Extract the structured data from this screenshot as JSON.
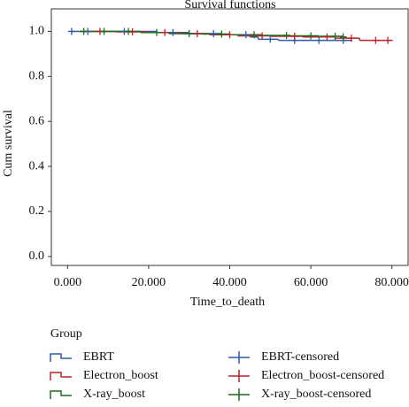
{
  "chart_data": {
    "type": "survival",
    "title": "Survival functions",
    "x_label": "Time_to_death",
    "y_label": "Cum survival",
    "legend_title": "Group",
    "xlim": [
      -4,
      84
    ],
    "ylim": [
      -0.04,
      1.1
    ],
    "xticks": [
      {
        "value": 0,
        "label": "0.000"
      },
      {
        "value": 20,
        "label": "20.000"
      },
      {
        "value": 40,
        "label": "40.000"
      },
      {
        "value": 60,
        "label": "60.000"
      },
      {
        "value": 80,
        "label": "80.000"
      }
    ],
    "yticks": [
      {
        "value": 0,
        "label": "0.0"
      },
      0.2,
      0.4,
      0.6,
      0.8,
      {
        "value": 1,
        "label": "1.0"
      }
    ],
    "series": [
      {
        "name": "EBRT",
        "color": "#2f5aa8",
        "marker": "step",
        "x": [
          0.8,
          10,
          22,
          30,
          38,
          45,
          47,
          52,
          70
        ],
        "values": [
          1.0,
          1.0,
          0.995,
          0.99,
          0.985,
          0.975,
          0.965,
          0.96,
          0.96
        ]
      },
      {
        "name": "Electron_boost",
        "color": "#c0202a",
        "marker": "step",
        "x": [
          5,
          12,
          20,
          28,
          35,
          42,
          50,
          58,
          66,
          72,
          80
        ],
        "values": [
          1.0,
          0.998,
          0.995,
          0.99,
          0.985,
          0.98,
          0.978,
          0.975,
          0.97,
          0.96,
          0.96
        ]
      },
      {
        "name": "X-ray_boost",
        "color": "#1f6b1f",
        "marker": "step",
        "x": [
          3,
          10,
          18,
          25,
          33,
          40,
          48,
          55,
          62,
          68
        ],
        "values": [
          1.0,
          1.0,
          0.995,
          0.99,
          0.988,
          0.985,
          0.982,
          0.98,
          0.978,
          0.975
        ]
      },
      {
        "name": "EBRT-censored",
        "color": "#2f5aa8",
        "marker": "plus",
        "x": [
          1,
          5,
          14,
          26,
          36,
          44,
          50,
          56,
          62,
          68
        ],
        "values": [
          1.0,
          1.0,
          1.0,
          0.995,
          0.99,
          0.985,
          0.965,
          0.96,
          0.96,
          0.96
        ]
      },
      {
        "name": "Electron_boost-censored",
        "color": "#c0202a",
        "marker": "plus",
        "x": [
          8,
          16,
          24,
          32,
          40,
          48,
          56,
          64,
          70,
          76,
          79
        ],
        "values": [
          1.0,
          0.998,
          0.995,
          0.99,
          0.985,
          0.98,
          0.978,
          0.975,
          0.97,
          0.96,
          0.96
        ]
      },
      {
        "name": "X-ray_boost-censored",
        "color": "#1f6b1f",
        "marker": "plus",
        "x": [
          4,
          9,
          15,
          22,
          30,
          38,
          46,
          54,
          60,
          66,
          68
        ],
        "values": [
          1.0,
          1.0,
          1.0,
          0.995,
          0.99,
          0.988,
          0.985,
          0.982,
          0.98,
          0.978,
          0.975
        ]
      }
    ]
  }
}
